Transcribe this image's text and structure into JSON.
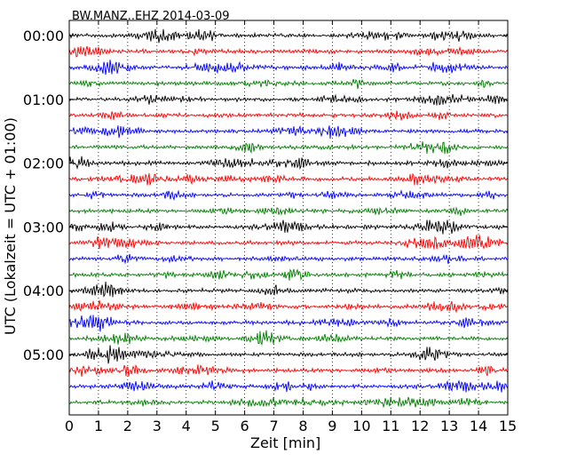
{
  "chart_data": {
    "type": "line",
    "title": "BW.MANZ..EHZ 2014-03-09",
    "xlabel": "Zeit  [min]",
    "ylabel": "UTC (Lokalzeit = UTC + 01:00)",
    "xlim": [
      0,
      15
    ],
    "x_ticks": [
      "0",
      "1",
      "2",
      "3",
      "4",
      "5",
      "6",
      "7",
      "8",
      "9",
      "10",
      "11",
      "12",
      "13",
      "14",
      "15"
    ],
    "y_ticks": [
      "00:00",
      "01:00",
      "02:00",
      "03:00",
      "04:00",
      "05:00"
    ],
    "rows_per_hour": 4,
    "row_count": 24,
    "row_colors": [
      "#000000",
      "#ff0000",
      "#0000ff",
      "#007f00"
    ],
    "grid": "vertical dotted",
    "legend": "none"
  }
}
